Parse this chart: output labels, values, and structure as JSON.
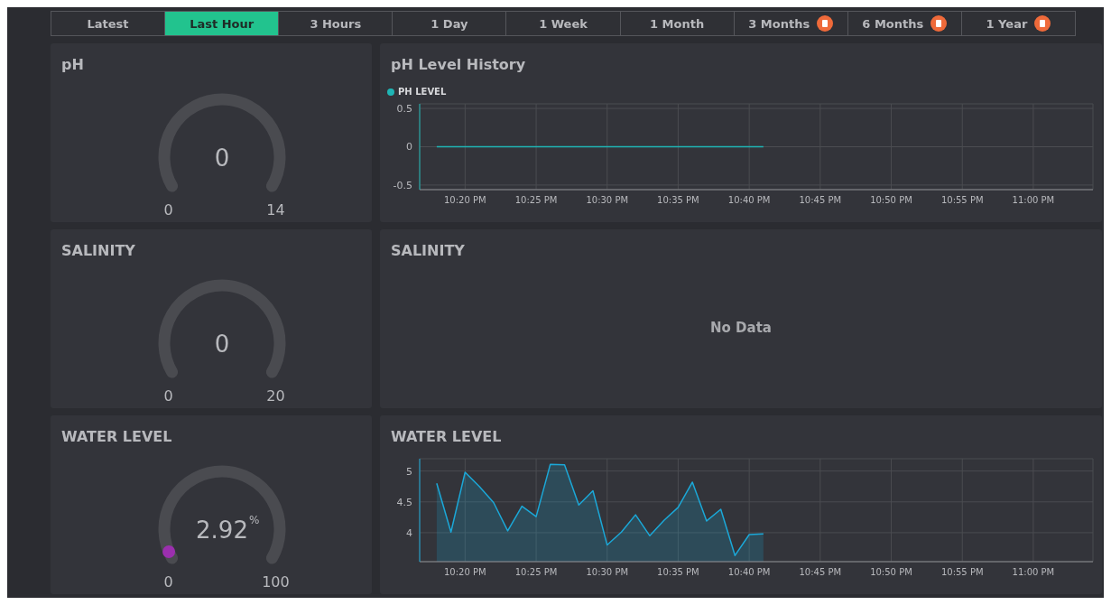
{
  "chart_data": [
    {
      "type": "other",
      "annotations": [
        "Latest",
        "Last Hour",
        "3 Hours",
        "1 Day",
        "1 Week",
        "1 Month",
        "3 Months",
        "6 Months",
        "1 Year"
      ]
    },
    {
      "type": "other",
      "title": "pH",
      "annotations": [
        "0",
        "0",
        "14"
      ]
    },
    {
      "type": "line",
      "title": "pH Level History",
      "legend": "top left",
      "grid": true,
      "marker": "none",
      "xlim": [
        22.28,
        23.07
      ],
      "ylim": [
        -0.56,
        0.56
      ],
      "yticks": [
        -0.5,
        0,
        0.5
      ],
      "xticks": [
        {
          "value": 22.3333,
          "label": "10:20 PM"
        },
        {
          "value": 22.4167,
          "label": "10:25 PM"
        },
        {
          "value": 22.5,
          "label": "10:30 PM"
        },
        {
          "value": 22.5833,
          "label": "10:35 PM"
        },
        {
          "value": 22.6667,
          "label": "10:40 PM"
        },
        {
          "value": 22.75,
          "label": "10:45 PM"
        },
        {
          "value": 22.8333,
          "label": "10:50 PM"
        },
        {
          "value": 22.9167,
          "label": "10:55 PM"
        },
        {
          "value": 23.0,
          "label": "11:00 PM"
        }
      ],
      "series": [
        {
          "name": "PH LEVEL",
          "color": "#1fb5b5",
          "x": [
            22.3,
            22.6833
          ],
          "values": [
            0,
            0
          ]
        }
      ]
    },
    {
      "type": "other",
      "title": "SALINITY",
      "annotations": [
        "0",
        "0",
        "20"
      ]
    },
    {
      "type": "other",
      "title": "SALINITY",
      "annotations": [
        "No Data"
      ]
    },
    {
      "type": "other",
      "title": "WATER LEVEL",
      "annotations": [
        "2.92",
        "0",
        "100",
        "%"
      ]
    },
    {
      "type": "area",
      "title": "WATER LEVEL",
      "grid": true,
      "marker": "none",
      "xlim": [
        22.28,
        23.07
      ],
      "ylim": [
        3.53,
        5.2
      ],
      "yticks": [
        4,
        4.5,
        5
      ],
      "xticks": [
        {
          "value": 22.3333,
          "label": "10:20 PM"
        },
        {
          "value": 22.4167,
          "label": "10:25 PM"
        },
        {
          "value": 22.5,
          "label": "10:30 PM"
        },
        {
          "value": 22.5833,
          "label": "10:35 PM"
        },
        {
          "value": 22.6667,
          "label": "10:40 PM"
        },
        {
          "value": 22.75,
          "label": "10:45 PM"
        },
        {
          "value": 22.8333,
          "label": "10:50 PM"
        },
        {
          "value": 22.9167,
          "label": "10:55 PM"
        },
        {
          "value": 23.0,
          "label": "11:00 PM"
        }
      ],
      "series": [
        {
          "color": "#1ba8d8",
          "x": [
            22.3,
            22.3167,
            22.3333,
            22.35,
            22.3667,
            22.3833,
            22.4,
            22.4167,
            22.4333,
            22.45,
            22.4667,
            22.4833,
            22.5,
            22.5167,
            22.5333,
            22.55,
            22.5667,
            22.5833,
            22.6,
            22.6167,
            22.6333,
            22.65,
            22.6667,
            22.6833
          ],
          "values": [
            4.8,
            4.01,
            4.98,
            4.75,
            4.49,
            4.03,
            4.43,
            4.26,
            5.11,
            5.1,
            4.45,
            4.68,
            3.8,
            4.01,
            4.29,
            3.95,
            4.2,
            4.41,
            4.82,
            4.19,
            4.38,
            3.63,
            3.97,
            3.98
          ]
        }
      ]
    }
  ]
}
